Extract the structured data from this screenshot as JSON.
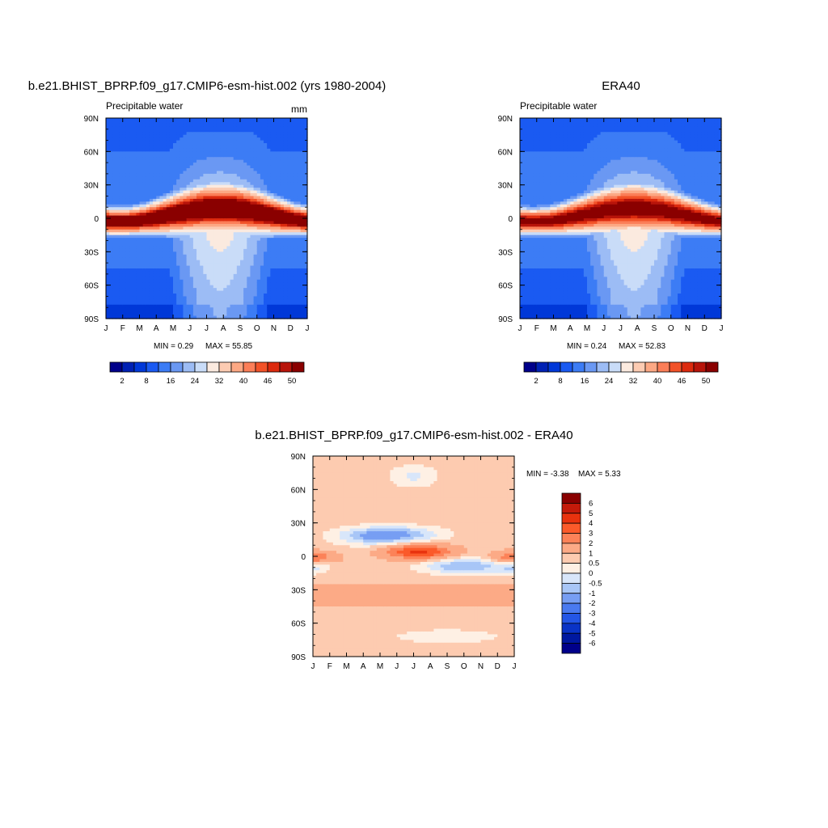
{
  "chart_data": [
    {
      "type": "heatmap",
      "title": "b.e21.BHIST_BPRP.f09_g17.CMIP6-esm-hist.002 (yrs 1980-2004)",
      "left_label": "Precipitable water",
      "right_label": "mm",
      "x_ticks": [
        "J",
        "F",
        "M",
        "A",
        "M",
        "J",
        "J",
        "A",
        "S",
        "O",
        "N",
        "D",
        "J"
      ],
      "y_ticks": [
        "90N",
        "60N",
        "30N",
        "0",
        "30S",
        "60S",
        "90S"
      ],
      "y_tick_values": [
        90,
        60,
        30,
        0,
        -30,
        -60,
        -90
      ],
      "ylim": [
        -90,
        90
      ],
      "min_text": "MIN =   0.29",
      "max_text": "MAX =   55.85",
      "min": 0.29,
      "max": 55.85,
      "peak": 55.85,
      "colorbar_labels": [
        "2",
        "8",
        "16",
        "24",
        "32",
        "40",
        "46",
        "50"
      ],
      "colorbar_levels": [
        2,
        4,
        8,
        12,
        16,
        20,
        24,
        28,
        32,
        36,
        40,
        44,
        46,
        48,
        50
      ],
      "colors": [
        "#00008a",
        "#0021b4",
        "#0038d8",
        "#1a5af2",
        "#3c7cf5",
        "#6a98f3",
        "#9cbcf5",
        "#c9dcf8",
        "#fbeadf",
        "#fccbb2",
        "#fca884",
        "#fb7e58",
        "#f25228",
        "#dc2a0e",
        "#b8140a",
        "#8a0000"
      ]
    },
    {
      "type": "heatmap",
      "title": "ERA40",
      "left_label": "Precipitable water",
      "right_label": "",
      "x_ticks": [
        "J",
        "F",
        "M",
        "A",
        "M",
        "J",
        "J",
        "A",
        "S",
        "O",
        "N",
        "D",
        "J"
      ],
      "y_ticks": [
        "90N",
        "60N",
        "30N",
        "0",
        "30S",
        "60S",
        "90S"
      ],
      "y_tick_values": [
        90,
        60,
        30,
        0,
        -30,
        -60,
        -90
      ],
      "ylim": [
        -90,
        90
      ],
      "min_text": "MIN =   0.24",
      "max_text": "MAX =   52.83",
      "min": 0.24,
      "max": 52.83,
      "peak": 52.83,
      "colorbar_labels": [
        "2",
        "8",
        "16",
        "24",
        "32",
        "40",
        "46",
        "50"
      ],
      "colorbar_levels": [
        2,
        4,
        8,
        12,
        16,
        20,
        24,
        28,
        32,
        36,
        40,
        44,
        46,
        48,
        50
      ],
      "colors": [
        "#00008a",
        "#0021b4",
        "#0038d8",
        "#1a5af2",
        "#3c7cf5",
        "#6a98f3",
        "#9cbcf5",
        "#c9dcf8",
        "#fbeadf",
        "#fccbb2",
        "#fca884",
        "#fb7e58",
        "#f25228",
        "#dc2a0e",
        "#b8140a",
        "#8a0000"
      ]
    },
    {
      "type": "heatmap",
      "title": "b.e21.BHIST_BPRP.f09_g17.CMIP6-esm-hist.002 - ERA40",
      "x_ticks": [
        "J",
        "F",
        "M",
        "A",
        "M",
        "J",
        "J",
        "A",
        "S",
        "O",
        "N",
        "D",
        "J"
      ],
      "y_ticks": [
        "90N",
        "60N",
        "30N",
        "0",
        "30S",
        "60S",
        "90S"
      ],
      "y_tick_values": [
        90,
        60,
        30,
        0,
        -30,
        -60,
        -90
      ],
      "ylim": [
        -90,
        90
      ],
      "min_text": "MIN =  -3.38",
      "max_text": "MAX =    5.33",
      "min": -3.38,
      "max": 5.33,
      "colorbar_labels": [
        "6",
        "5",
        "4",
        "3",
        "2",
        "1",
        "0.5",
        "0",
        "-0.5",
        "-1",
        "-2",
        "-3",
        "-4",
        "-5",
        "-6"
      ],
      "colorbar_levels": [
        6,
        5,
        4,
        3,
        2,
        1,
        0.5,
        0,
        -0.5,
        -1,
        -2,
        -3,
        -4,
        -5,
        -6
      ],
      "colors": [
        "#8a0000",
        "#c41a0a",
        "#e8320e",
        "#fb5a2a",
        "#fc8258",
        "#fcaa86",
        "#fdcbb0",
        "#fef0e4",
        "#d8e6fa",
        "#a8c6f7",
        "#779ef3",
        "#4a7af0",
        "#2456e6",
        "#0a33c6",
        "#0018a0",
        "#00008a"
      ]
    }
  ]
}
